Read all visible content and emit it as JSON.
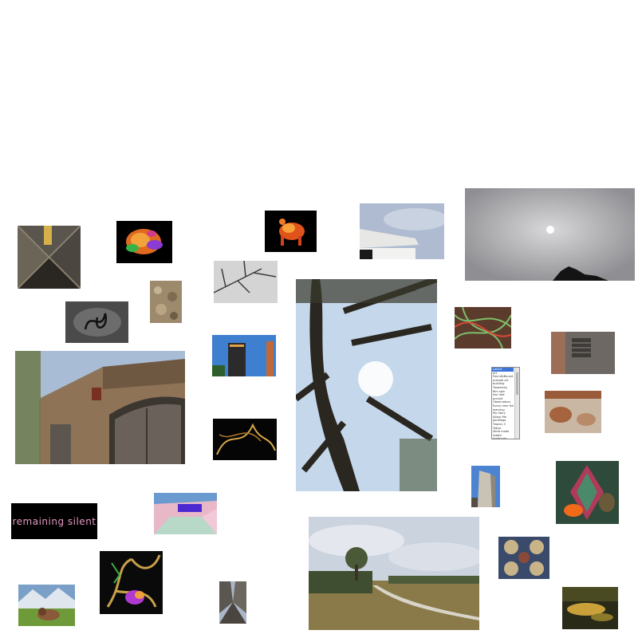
{
  "text_tile": {
    "label": "remaining silent"
  },
  "category_select": {
    "options": [
      "Labels",
      "art",
      "Found&Bound",
      "outside art",
      "building",
      "Taxonomy",
      "film spin",
      "line ride",
      "pursuit",
      "Observatory",
      "Every time Hello",
      "learning",
      "My Story",
      "About Me",
      "joinMega",
      "Tropics 3",
      "Tokyo",
      "Wind mode",
      "rotate",
      "textbooks"
    ],
    "selected_index": 0
  },
  "colors": {
    "background": "#ffffff",
    "label_pink": "#e59ac3",
    "select_highlight": "#3b74d6"
  }
}
